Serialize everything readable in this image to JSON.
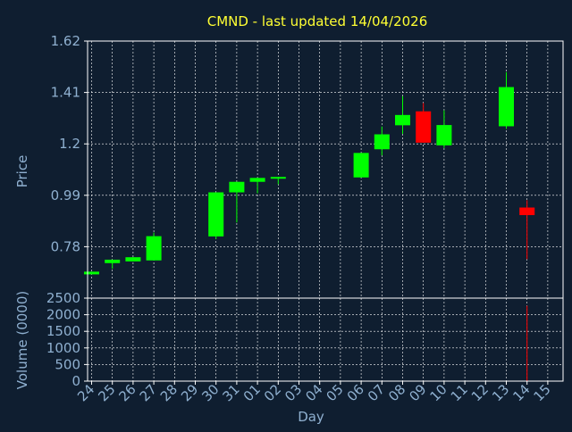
{
  "chart_data": {
    "type": "candlestick",
    "title": "CMND - last updated 14/04/2026",
    "xlabel": "Day",
    "price_panel": {
      "ylabel": "Price",
      "yticks": [
        "1.62",
        "1.41",
        "1.2",
        "0.99",
        "0.78"
      ],
      "ytick_values": [
        1.62,
        1.41,
        1.2,
        0.99,
        0.78
      ],
      "ylim": [
        0.57,
        1.62
      ],
      "grid": true
    },
    "volume_panel": {
      "ylabel": "Volume (0000)",
      "yticks": [
        "2500",
        "2000",
        "1500",
        "1000",
        "500",
        "0"
      ],
      "ytick_values": [
        2500,
        2000,
        1500,
        1000,
        500,
        0
      ],
      "ylim": [
        0,
        2500
      ],
      "grid": true
    },
    "x_ticks": [
      "24",
      "25",
      "26",
      "27",
      "28",
      "29",
      "30",
      "31",
      "01",
      "02",
      "03",
      "04",
      "05",
      "06",
      "07",
      "08",
      "09",
      "10",
      "11",
      "12",
      "13",
      "14",
      "15"
    ],
    "candles": [
      {
        "day": "24",
        "open": 0.667,
        "close": 0.678,
        "high": 0.678,
        "low": 0.667
      },
      {
        "day": "25",
        "open": 0.713,
        "close": 0.727,
        "high": 0.727,
        "low": 0.69
      },
      {
        "day": "26",
        "open": 0.72,
        "close": 0.737,
        "high": 0.737,
        "low": 0.72
      },
      {
        "day": "27",
        "open": 0.724,
        "close": 0.823,
        "high": 0.838,
        "low": 0.724
      },
      {
        "day": "30",
        "open": 0.822,
        "close": 1.002,
        "high": 1.002,
        "low": 0.811
      },
      {
        "day": "31",
        "open": 1.002,
        "close": 1.045,
        "high": 1.045,
        "low": 0.879
      },
      {
        "day": "01",
        "open": 1.045,
        "close": 1.061,
        "high": 1.061,
        "low": 0.998
      },
      {
        "day": "02",
        "open": 1.058,
        "close": 1.065,
        "high": 1.065,
        "low": 1.035
      },
      {
        "day": "06",
        "open": 1.063,
        "close": 1.163,
        "high": 1.163,
        "low": 1.063
      },
      {
        "day": "07",
        "open": 1.178,
        "close": 1.239,
        "high": 1.271,
        "low": 1.153
      },
      {
        "day": "08",
        "open": 1.276,
        "close": 1.318,
        "high": 1.395,
        "low": 1.241
      },
      {
        "day": "09",
        "open": 1.333,
        "close": 1.205,
        "high": 1.367,
        "low": 1.205
      },
      {
        "day": "10",
        "open": 1.194,
        "close": 1.277,
        "high": 1.337,
        "low": 1.183
      },
      {
        "day": "13",
        "open": 1.272,
        "close": 1.432,
        "high": 1.493,
        "low": 1.261
      },
      {
        "day": "14",
        "open": 0.94,
        "close": 0.909,
        "high": 0.97,
        "low": 0.729
      }
    ],
    "volumes": [
      {
        "day": "14",
        "value": 2270
      }
    ],
    "colors": {
      "background": "#0f1e30",
      "grid": "#ffffff",
      "frame": "#ffffff",
      "up": "#00ff00",
      "down": "#ff0000",
      "title": "#ffff33",
      "text": "#8fb0d0"
    }
  }
}
